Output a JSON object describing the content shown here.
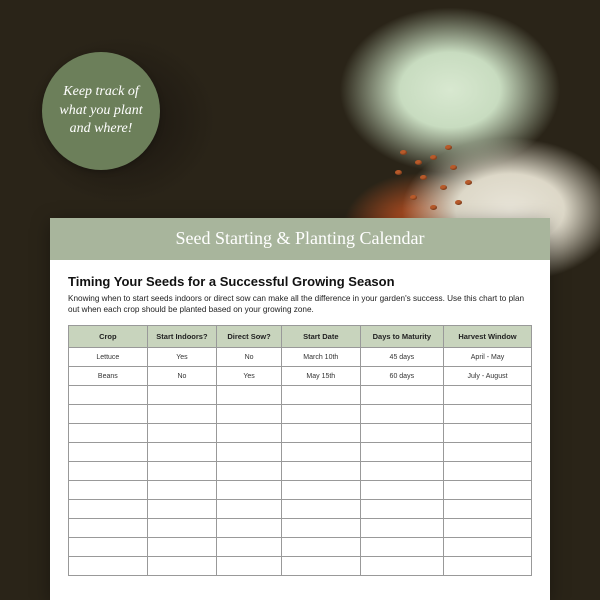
{
  "badge": {
    "text": "Keep track of what you plant and where!"
  },
  "sheet": {
    "title": "Seed Starting & Planting Calendar",
    "subtitle": "Timing Your Seeds for a Successful Growing Season",
    "description": "Knowing when to start seeds indoors or direct sow can make all the difference in your garden's success. Use this chart to plan out when each crop should be planted based on your growing zone."
  },
  "table": {
    "columns": [
      "Crop",
      "Start Indoors?",
      "Direct Sow?",
      "Start Date",
      "Days to Maturity",
      "Harvest Window"
    ],
    "rows": [
      [
        "Lettuce",
        "Yes",
        "No",
        "March 10th",
        "45 days",
        "April - May"
      ],
      [
        "Beans",
        "No",
        "Yes",
        "May 15th",
        "60 days",
        "July - August"
      ],
      [
        "",
        "",
        "",
        "",
        "",
        ""
      ],
      [
        "",
        "",
        "",
        "",
        "",
        ""
      ],
      [
        "",
        "",
        "",
        "",
        "",
        ""
      ],
      [
        "",
        "",
        "",
        "",
        "",
        ""
      ],
      [
        "",
        "",
        "",
        "",
        "",
        ""
      ],
      [
        "",
        "",
        "",
        "",
        "",
        ""
      ],
      [
        "",
        "",
        "",
        "",
        "",
        ""
      ],
      [
        "",
        "",
        "",
        "",
        "",
        ""
      ],
      [
        "",
        "",
        "",
        "",
        "",
        ""
      ],
      [
        "",
        "",
        "",
        "",
        "",
        ""
      ]
    ]
  },
  "colors": {
    "badge_bg": "#6c7f5a",
    "header_bg": "#a8b59c",
    "table_header_bg": "#c8d4bd",
    "border": "#999999"
  }
}
